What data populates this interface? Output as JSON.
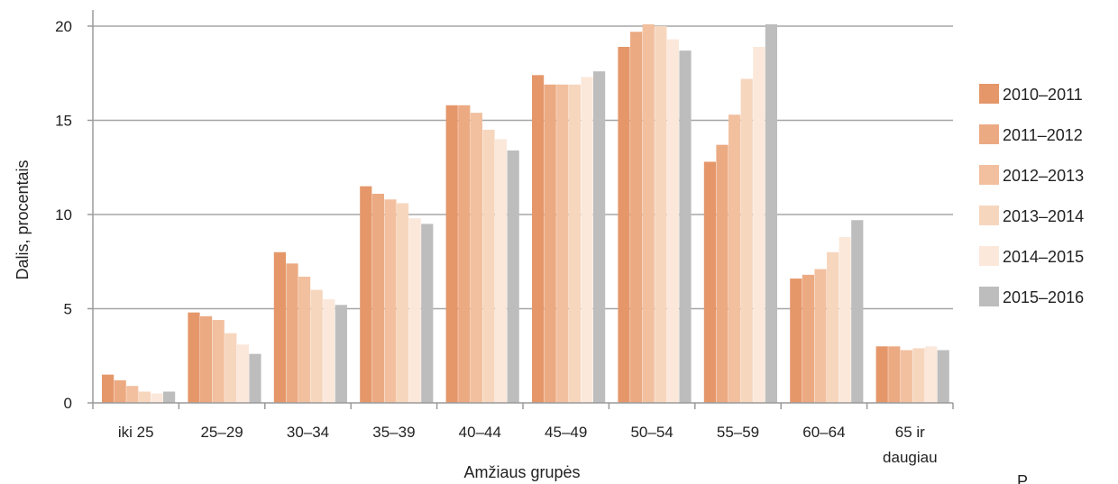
{
  "chart_data": {
    "type": "bar",
    "title": "",
    "xlabel": "Amžiaus grupės",
    "ylabel": "Dalis, procentais",
    "ylim": [
      0,
      20
    ],
    "yticks": [
      0,
      5,
      10,
      15,
      20
    ],
    "grid": true,
    "legend_position": "right",
    "categories": [
      [
        "iki 25"
      ],
      [
        "25–29"
      ],
      [
        "30–34"
      ],
      [
        "35–39"
      ],
      [
        "40–44"
      ],
      [
        "45–49"
      ],
      [
        "50–54"
      ],
      [
        "55–59"
      ],
      [
        "60–64"
      ],
      [
        "65 ir",
        "daugiau"
      ]
    ],
    "series": [
      {
        "name": "2010–2011",
        "color": "#e5976a",
        "values": [
          1.5,
          4.8,
          8.0,
          11.5,
          15.8,
          17.4,
          18.9,
          12.8,
          6.6,
          3.0
        ]
      },
      {
        "name": "2011–2012",
        "color": "#ecaa82",
        "values": [
          1.2,
          4.6,
          7.4,
          11.1,
          15.8,
          16.9,
          19.7,
          13.7,
          6.8,
          3.0
        ]
      },
      {
        "name": "2012–2013",
        "color": "#f2c09f",
        "values": [
          0.9,
          4.4,
          6.7,
          10.8,
          15.4,
          16.9,
          20.1,
          15.3,
          7.1,
          2.8
        ]
      },
      {
        "name": "2013–2014",
        "color": "#f7d6be",
        "values": [
          0.6,
          3.7,
          6.0,
          10.6,
          14.5,
          16.9,
          20.0,
          17.2,
          8.0,
          2.9
        ]
      },
      {
        "name": "2014–2015",
        "color": "#fbe8da",
        "values": [
          0.5,
          3.1,
          5.5,
          9.8,
          14.0,
          17.3,
          19.3,
          18.9,
          8.8,
          3.0
        ]
      },
      {
        "name": "2015–2016",
        "color": "#bdbdbd",
        "values": [
          0.6,
          2.6,
          5.2,
          9.5,
          13.4,
          17.6,
          18.7,
          20.1,
          9.7,
          2.8
        ]
      }
    ]
  },
  "corner_text": "P"
}
